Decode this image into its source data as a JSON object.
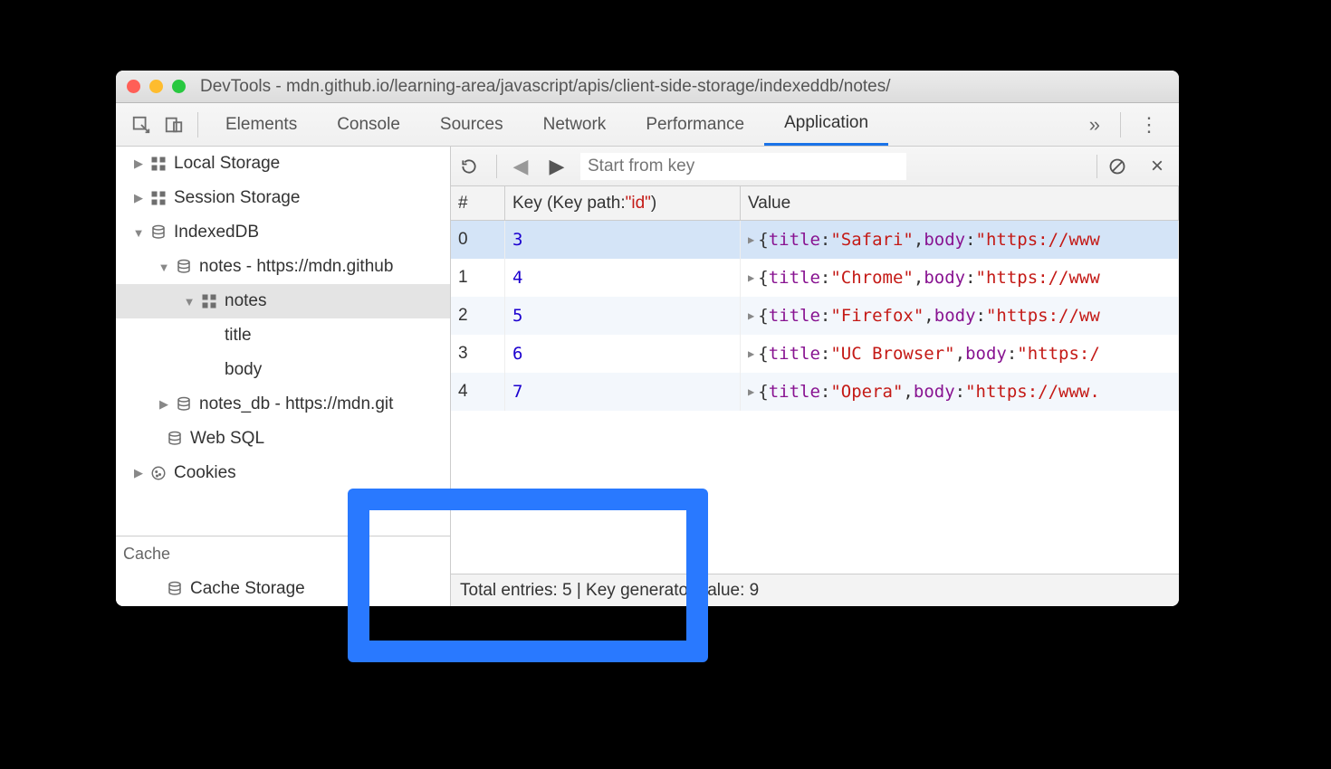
{
  "window": {
    "title": "DevTools - mdn.github.io/learning-area/javascript/apis/client-side-storage/indexeddb/notes/"
  },
  "tabs": {
    "items": [
      "Elements",
      "Console",
      "Sources",
      "Network",
      "Performance",
      "Application"
    ],
    "active": "Application",
    "overflow_glyph": "»"
  },
  "sidebar": {
    "items": [
      {
        "label": "Local Storage",
        "indent": 18,
        "arrow": "▶",
        "icon": "grid"
      },
      {
        "label": "Session Storage",
        "indent": 18,
        "arrow": "▶",
        "icon": "grid"
      },
      {
        "label": "IndexedDB",
        "indent": 18,
        "arrow": "▼",
        "icon": "db"
      },
      {
        "label": "notes - https://mdn.github",
        "indent": 46,
        "arrow": "▼",
        "icon": "db"
      },
      {
        "label": "notes",
        "indent": 74,
        "arrow": "▼",
        "icon": "grid",
        "selected": true
      },
      {
        "label": "title",
        "indent": 102,
        "arrow": "",
        "icon": ""
      },
      {
        "label": "body",
        "indent": 102,
        "arrow": "",
        "icon": ""
      },
      {
        "label": "notes_db - https://mdn.git",
        "indent": 46,
        "arrow": "▶",
        "icon": "db"
      },
      {
        "label": "Web SQL",
        "indent": 36,
        "arrow": "",
        "icon": "db"
      },
      {
        "label": "Cookies",
        "indent": 18,
        "arrow": "▶",
        "icon": "cookie"
      }
    ],
    "cache_label": "Cache",
    "cache_items": [
      {
        "label": "Cache Storage",
        "indent": 36,
        "arrow": "",
        "icon": "db"
      }
    ]
  },
  "toolbar": {
    "search_placeholder": "Start from key"
  },
  "table": {
    "col_idx": "#",
    "col_key_prefix": "Key (Key path: ",
    "col_key_id": "\"id\"",
    "col_key_suffix": ")",
    "col_val": "Value",
    "rows": [
      {
        "idx": "0",
        "key": "3",
        "title": "Safari",
        "body": "https://www",
        "selected": true,
        "alt": false
      },
      {
        "idx": "1",
        "key": "4",
        "title": "Chrome",
        "body": "https://www",
        "selected": false,
        "alt": false
      },
      {
        "idx": "2",
        "key": "5",
        "title": "Firefox",
        "body": "https://ww",
        "selected": false,
        "alt": true
      },
      {
        "idx": "3",
        "key": "6",
        "title": "UC Browser",
        "body": "https:/",
        "selected": false,
        "alt": false
      },
      {
        "idx": "4",
        "key": "7",
        "title": "Opera",
        "body": "https://www.",
        "selected": false,
        "alt": true
      }
    ]
  },
  "footer": {
    "text": "Total entries: 5 | Key generator value: 9"
  }
}
